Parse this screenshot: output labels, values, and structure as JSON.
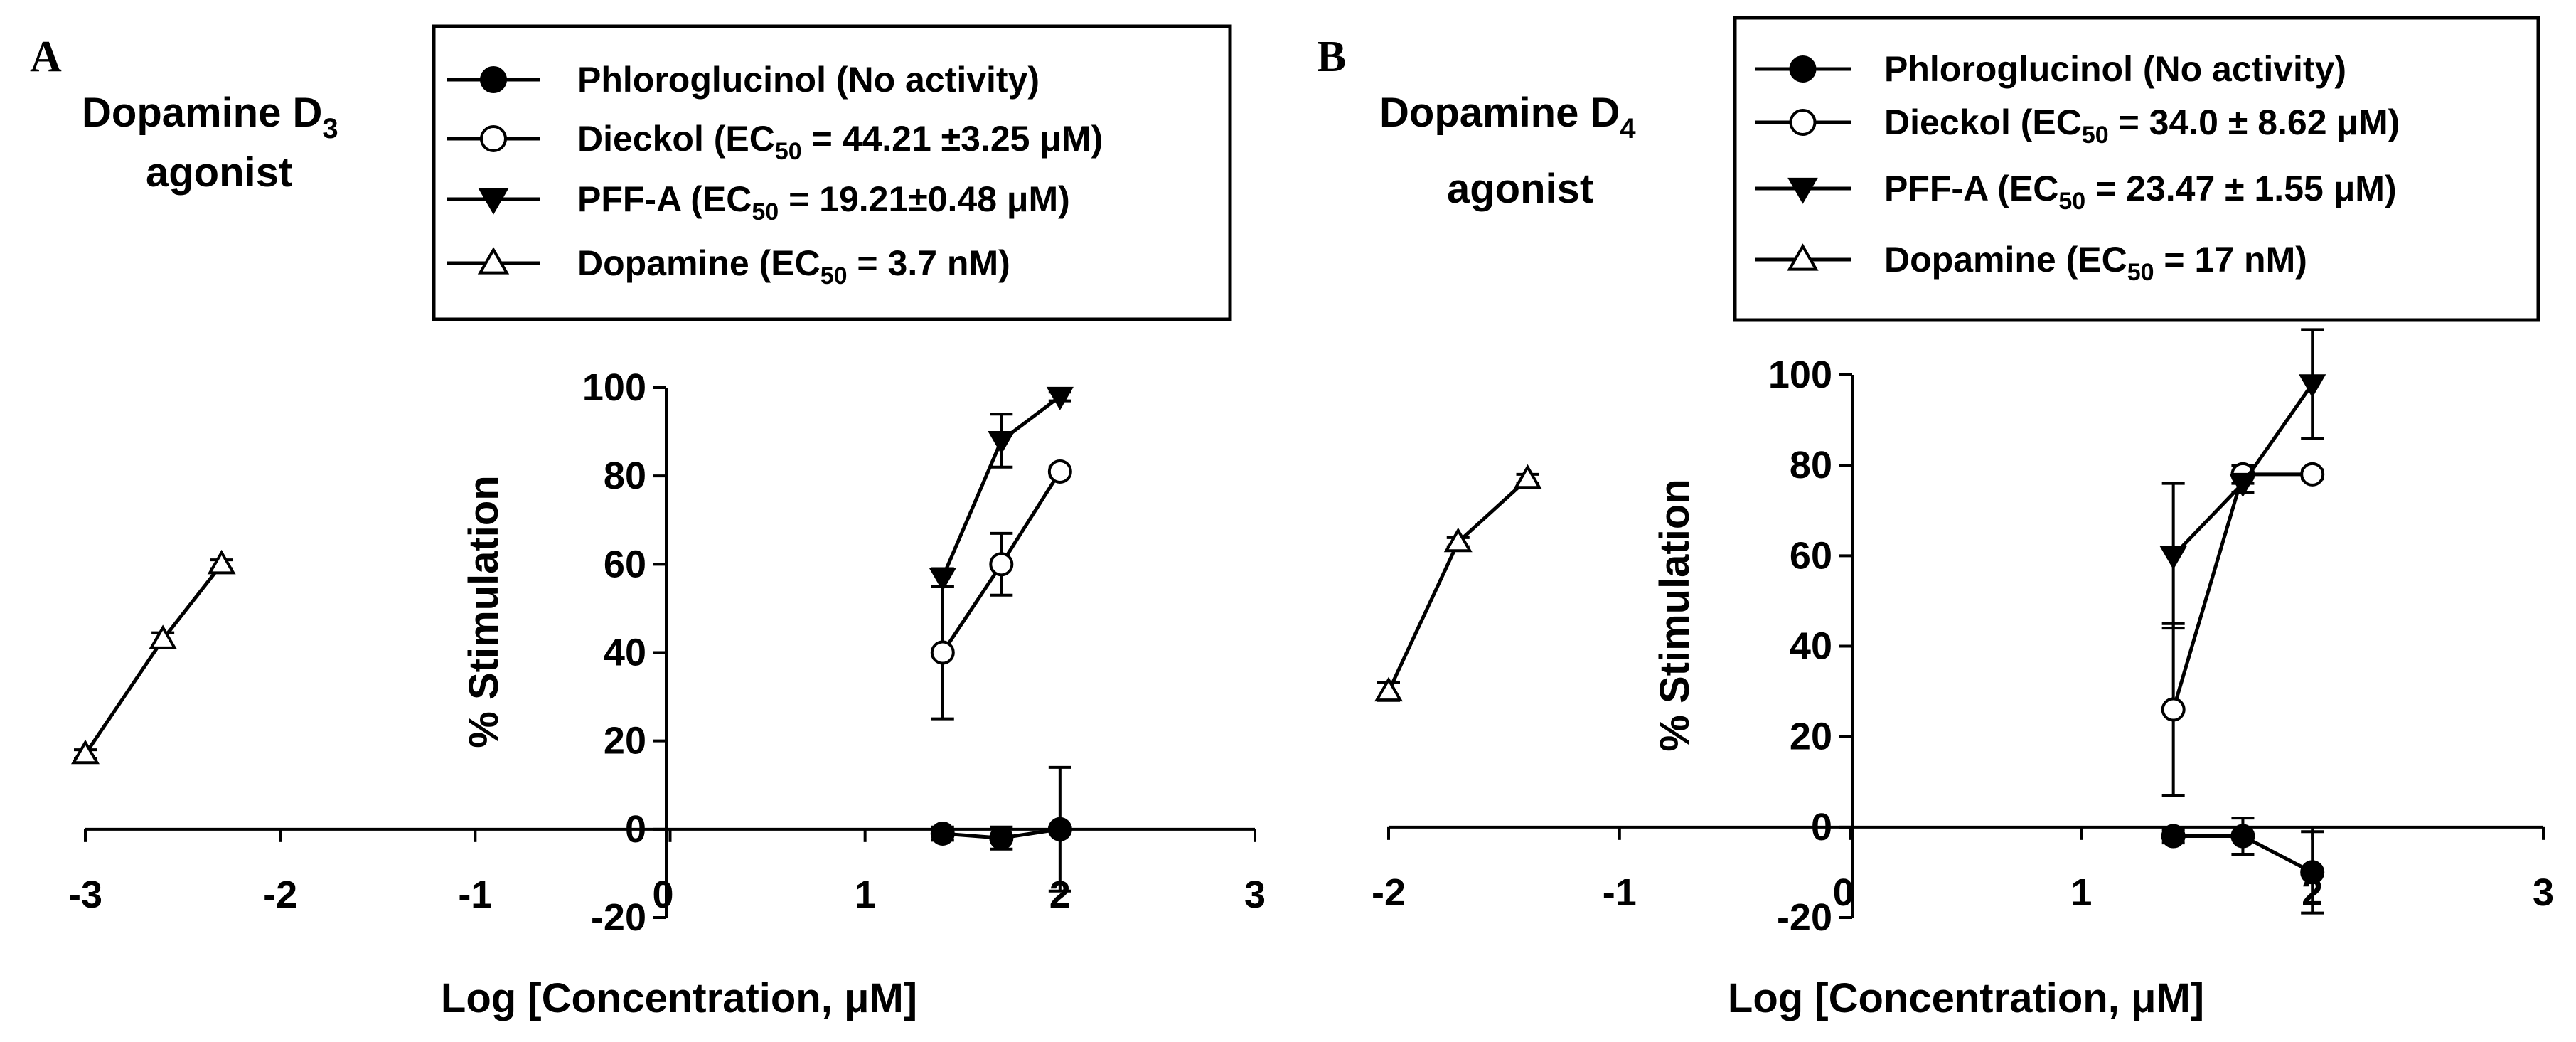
{
  "panels": [
    {
      "letter": "A",
      "title_line1": "Dopamine D",
      "title_sub": "3",
      "title_line2": "agonist",
      "legend": [
        {
          "marker": "filled-circle",
          "pre": "Phloroglucinol (No activity)",
          "sub": "",
          "post": ""
        },
        {
          "marker": "open-circle",
          "pre": "Dieckol (EC",
          "sub": "50",
          "post": " =  44.21 ±3.25 μM)"
        },
        {
          "marker": "filled-triangle-down",
          "pre": "PFF-A  (EC",
          "sub": "50",
          "post": " =  19.21±0.48 μM)"
        },
        {
          "marker": "open-triangle-up",
          "pre": "Dopamine  (EC",
          "sub": "50",
          "post": " =  3.7 nM)"
        }
      ],
      "xlabel": "Log [Concentration, μM]",
      "ylabel": "% Stimulation"
    },
    {
      "letter": "B",
      "title_line1": "Dopamine D",
      "title_sub": "4",
      "title_line2": "agonist",
      "legend": [
        {
          "marker": "filled-circle",
          "pre": "Phloroglucinol (No activity)",
          "sub": "",
          "post": ""
        },
        {
          "marker": "open-circle",
          "pre": "Dieckol (EC",
          "sub": "50",
          "post": " =  34.0 ± 8.62 μM)"
        },
        {
          "marker": "filled-triangle-down",
          "pre": "PFF-A  (EC",
          "sub": "50",
          "post": " =  23.47 ± 1.55 μM)"
        },
        {
          "marker": "open-triangle-up",
          "pre": "Dopamine  (EC",
          "sub": "50",
          "post": " =  17 nM)"
        }
      ],
      "xlabel": "Log [Concentration, μM]",
      "ylabel": "% Stimulation"
    }
  ],
  "chart_data": [
    {
      "type": "line",
      "title": "Dopamine D3 agonist",
      "xlabel": "Log [Concentration, μM]",
      "ylabel": "% Stimulation",
      "xlim": [
        -3,
        3
      ],
      "ylim": [
        -20,
        100
      ],
      "xticks": [
        -3,
        -2,
        -1,
        0,
        1,
        2,
        3
      ],
      "yticks": [
        -20,
        0,
        20,
        40,
        60,
        80,
        100
      ],
      "grid": false,
      "legend_position": "top",
      "series": [
        {
          "name": "Phloroglucinol (No activity)",
          "marker": "filled-circle",
          "x": [
            1.398,
            1.699,
            2.0
          ],
          "y": [
            -1,
            -2,
            0
          ],
          "err": [
            1.5,
            2.5,
            14
          ]
        },
        {
          "name": "Dieckol",
          "marker": "open-circle",
          "x": [
            1.398,
            1.699,
            2.0
          ],
          "y": [
            40,
            60,
            81
          ],
          "err": [
            15,
            7,
            1
          ]
        },
        {
          "name": "PFF-A",
          "marker": "filled-triangle-down",
          "x": [
            1.398,
            1.699,
            2.0
          ],
          "y": [
            57,
            88,
            98
          ],
          "err": [
            2,
            6,
            1
          ]
        },
        {
          "name": "Dopamine",
          "marker": "open-triangle-up",
          "x": [
            -3.0,
            -2.602,
            -2.301
          ],
          "y": [
            17,
            43,
            60
          ],
          "err": [
            1,
            1.5,
            1
          ]
        }
      ]
    },
    {
      "type": "line",
      "title": "Dopamine D4 agonist",
      "xlabel": "Log [Concentration, μM]",
      "ylabel": "% Stimulation",
      "xlim": [
        -2,
        3
      ],
      "ylim": [
        -20,
        100
      ],
      "xticks": [
        -2,
        -1,
        0,
        1,
        2,
        3
      ],
      "yticks": [
        -20,
        0,
        20,
        40,
        60,
        80,
        100
      ],
      "grid": false,
      "legend_position": "top",
      "series": [
        {
          "name": "Phloroglucinol (No activity)",
          "marker": "filled-circle",
          "x": [
            1.398,
            1.699,
            2.0
          ],
          "y": [
            -2,
            -2,
            -10
          ],
          "err": [
            1.5,
            4,
            9
          ]
        },
        {
          "name": "Dieckol",
          "marker": "open-circle",
          "x": [
            1.398,
            1.699,
            2.0
          ],
          "y": [
            26,
            78,
            78
          ],
          "err": [
            19,
            2,
            1
          ]
        },
        {
          "name": "PFF-A",
          "marker": "filled-triangle-down",
          "x": [
            1.398,
            1.699,
            2.0
          ],
          "y": [
            60,
            76,
            98
          ],
          "err": [
            16,
            2,
            12
          ]
        },
        {
          "name": "Dopamine",
          "marker": "open-triangle-up",
          "x": [
            -2.0,
            -1.699,
            -1.398
          ],
          "y": [
            30,
            63,
            77
          ],
          "err": [
            2,
            1,
            1
          ]
        }
      ]
    }
  ]
}
